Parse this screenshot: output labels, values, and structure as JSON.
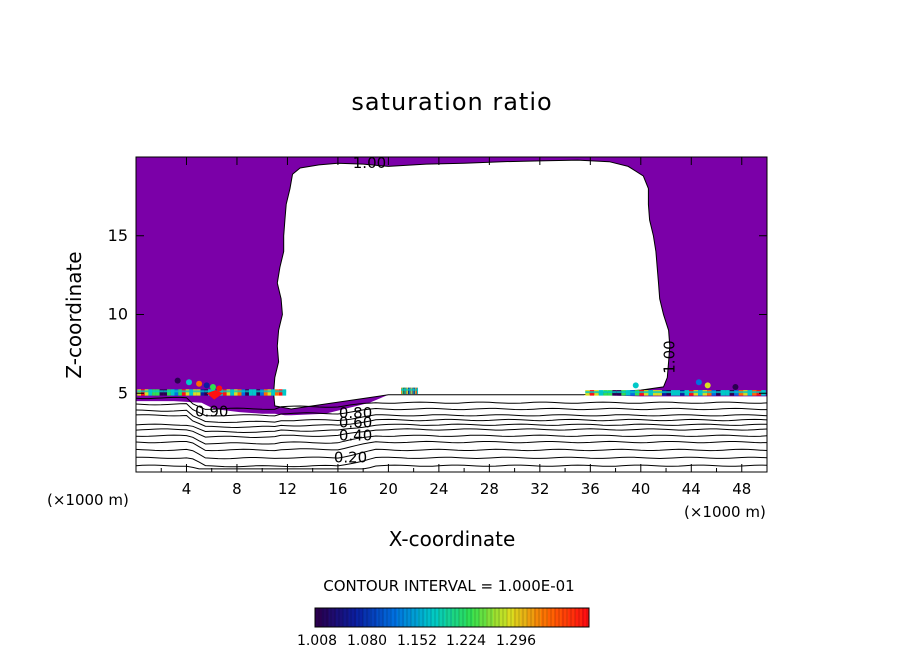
{
  "chart_data": {
    "type": "heatmap",
    "title": "saturation ratio",
    "xlabel": "X-coordinate",
    "ylabel": "Z-coordinate",
    "x_unit": "(×1000 m)",
    "x_ticks": [
      4,
      8,
      12,
      16,
      20,
      24,
      28,
      32,
      36,
      40,
      44,
      48
    ],
    "y_ticks": [
      5,
      10,
      15
    ],
    "xlim": [
      0,
      50
    ],
    "ylim": [
      0,
      20
    ],
    "contour_interval_text": "CONTOUR INTERVAL = 1.000E-01",
    "colorbar_ticks": [
      "1.008",
      "1.080",
      "1.152",
      "1.224",
      "1.296"
    ],
    "contour_labels": [
      {
        "text": "1.00",
        "x": 18.5,
        "z": 19.6
      },
      {
        "text": "1.00",
        "x": 42.3,
        "z": 7.3
      },
      {
        "text": "0.90",
        "x": 6.0,
        "z": 3.8
      },
      {
        "text": "0.80",
        "x": 17.4,
        "z": 3.7
      },
      {
        "text": "0.60",
        "x": 17.4,
        "z": 3.1
      },
      {
        "text": "0.40",
        "x": 17.4,
        "z": 2.3
      },
      {
        "text": "0.20",
        "x": 17.0,
        "z": 0.9
      }
    ],
    "saturated_fill_color": "#7b00a8",
    "colormap": [
      "#2a0050",
      "#0a1ea0",
      "#0070e0",
      "#00c8c8",
      "#30e050",
      "#d8e020",
      "#ff6a00",
      "#ff1010"
    ]
  }
}
